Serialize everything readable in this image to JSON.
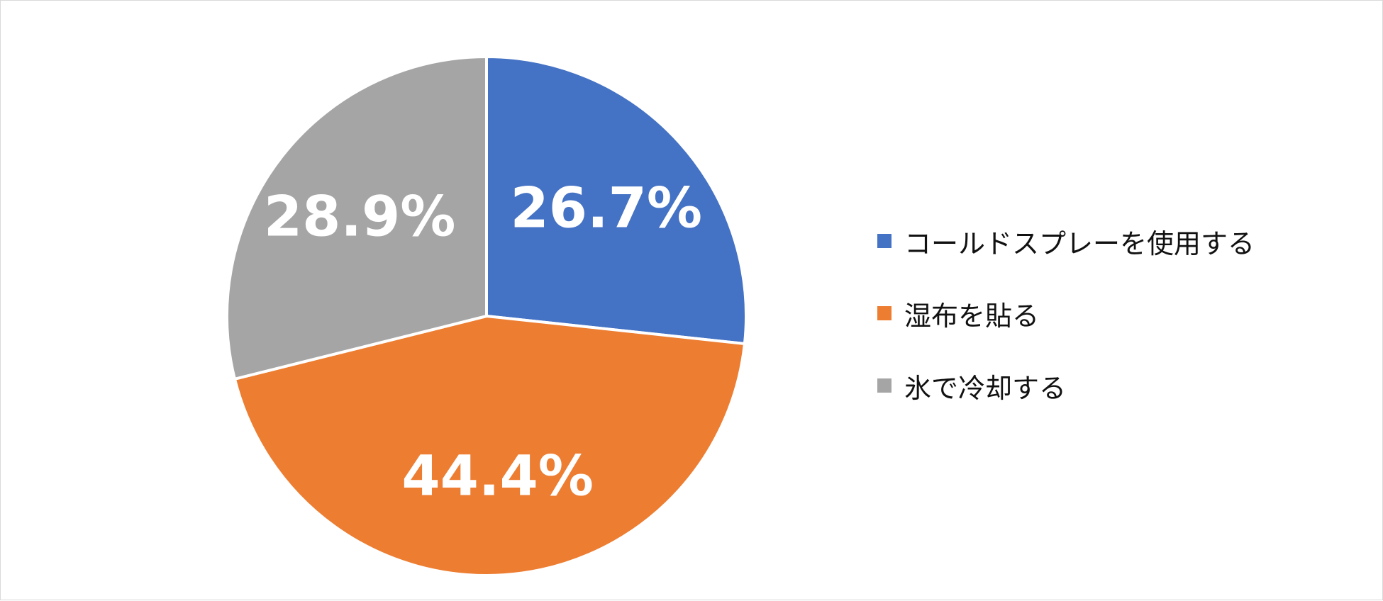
{
  "chart_data": {
    "type": "pie",
    "categories": [
      "コールドスプレーを使用する",
      "湿布を貼る",
      "氷で冷却する"
    ],
    "values": [
      26.7,
      44.4,
      28.9
    ],
    "value_labels": [
      "26.7%",
      "44.4%",
      "28.9%"
    ],
    "colors": [
      "#4472c4",
      "#ed7d31",
      "#a5a5a5"
    ],
    "start_angle_deg": 0,
    "direction": "clockwise",
    "legend": {
      "placement": "right",
      "items": [
        {
          "label": "コールドスプレーを使用する",
          "color": "#4472c4"
        },
        {
          "label": "湿布を貼る",
          "color": "#ed7d31"
        },
        {
          "label": "氷で冷却する",
          "color": "#a5a5a5"
        }
      ]
    }
  }
}
